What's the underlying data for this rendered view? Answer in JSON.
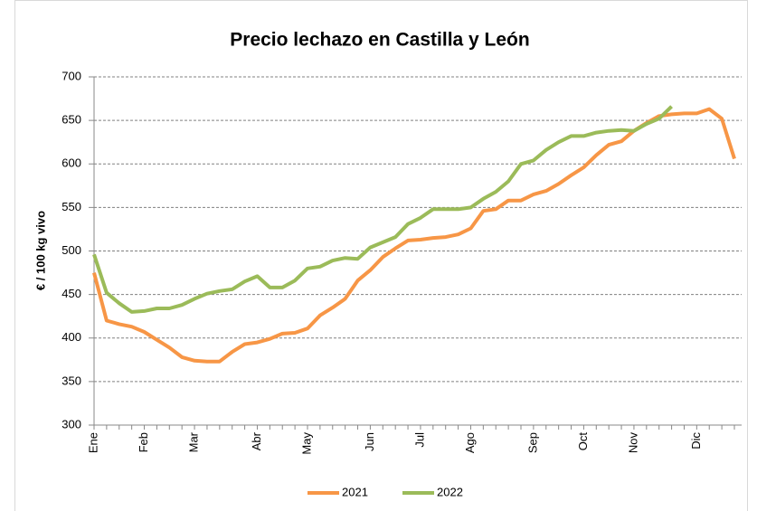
{
  "chart_data": {
    "type": "line",
    "title": "Precio lechazo en Castilla y León",
    "ylabel": "€ / 100 kg vivo",
    "categories": [
      "Ene",
      null,
      null,
      null,
      "Feb",
      null,
      null,
      null,
      "Mar",
      null,
      null,
      null,
      null,
      "Abr",
      null,
      null,
      null,
      "May",
      null,
      null,
      null,
      null,
      "Jun",
      null,
      null,
      null,
      "Jul",
      null,
      null,
      null,
      "Ago",
      null,
      null,
      null,
      null,
      "Sep",
      null,
      null,
      null,
      "Oct",
      null,
      null,
      null,
      "Nov",
      null,
      null,
      null,
      null,
      "Dic",
      null,
      null,
      null
    ],
    "series": [
      {
        "name": "2021",
        "color": "#f79646",
        "values": [
          475,
          420,
          416,
          413,
          407,
          398,
          389,
          378,
          374,
          373,
          373,
          384,
          393,
          395,
          399,
          405,
          406,
          411,
          426,
          435,
          445,
          466,
          478,
          493,
          503,
          512,
          513,
          515,
          516,
          519,
          526,
          546,
          548,
          558,
          558,
          565,
          569,
          577,
          587,
          596,
          610,
          622,
          626,
          638,
          647,
          655,
          657,
          658,
          658,
          663,
          652,
          606
        ]
      },
      {
        "name": "2022",
        "color": "#9bbb59",
        "values": [
          496,
          452,
          440,
          430,
          431,
          434,
          434,
          438,
          445,
          451,
          454,
          456,
          465,
          471,
          458,
          458,
          466,
          480,
          482,
          489,
          492,
          491,
          504,
          510,
          516,
          531,
          538,
          548,
          548,
          548,
          550,
          560,
          568,
          580,
          600,
          604,
          616,
          625,
          632,
          632,
          636,
          638,
          639,
          638,
          646,
          652,
          666,
          null,
          null,
          null,
          null,
          null
        ]
      }
    ],
    "ylim": [
      300,
      700
    ],
    "yticks": [
      300,
      350,
      400,
      450,
      500,
      550,
      600,
      650,
      700
    ],
    "grid": true,
    "legend": "bottom"
  }
}
